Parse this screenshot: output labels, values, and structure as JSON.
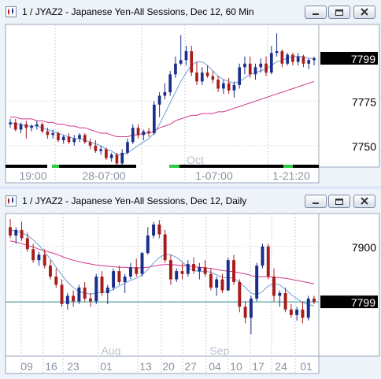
{
  "windows": [
    {
      "id": "win1",
      "title": "1 / JYAZ2 - Japanese Yen-All Sessions, Dec 12, 60 Min",
      "buttons": [
        "minimize-icon",
        "restore-icon",
        "close-icon"
      ],
      "chart_data": {
        "type": "candlestick",
        "price_tag": "7799",
        "y_ticks": [
          "7775",
          "7750"
        ],
        "x_labels": [
          "19:00",
          "28-07:00",
          "1-07:00",
          "1-21:20"
        ],
        "section_label": "Oct",
        "ylim": [
          7738,
          7818
        ],
        "colors": {
          "up": "#1a2e8c",
          "down": "#a81c1c",
          "slow_ma": "#d2378c",
          "fast_ma": "#6fa0d8",
          "tag_bg": "#000000",
          "tag_fg": "#ffffff"
        },
        "candles": [
          [
            7762,
            7765,
            7760,
            7763
          ],
          [
            7763,
            7765,
            7758,
            7759
          ],
          [
            7759,
            7763,
            7757,
            7762
          ],
          [
            7762,
            7764,
            7754,
            7760
          ],
          [
            7760,
            7762,
            7758,
            7761
          ],
          [
            7761,
            7764,
            7759,
            7762
          ],
          [
            7762,
            7763,
            7757,
            7758
          ],
          [
            7758,
            7760,
            7754,
            7756
          ],
          [
            7756,
            7759,
            7754,
            7757
          ],
          [
            7757,
            7758,
            7752,
            7753
          ],
          [
            7753,
            7756,
            7751,
            7755
          ],
          [
            7755,
            7757,
            7751,
            7752
          ],
          [
            7752,
            7756,
            7750,
            7754
          ],
          [
            7754,
            7757,
            7752,
            7756
          ],
          [
            7756,
            7757,
            7751,
            7752
          ],
          [
            7752,
            7754,
            7748,
            7750
          ],
          [
            7750,
            7753,
            7746,
            7747
          ],
          [
            7747,
            7750,
            7745,
            7748
          ],
          [
            7748,
            7749,
            7742,
            7743
          ],
          [
            7743,
            7746,
            7741,
            7745
          ],
          [
            7745,
            7746,
            7738,
            7740
          ],
          [
            7740,
            7748,
            7739,
            7746
          ],
          [
            7746,
            7754,
            7745,
            7752
          ],
          [
            7752,
            7762,
            7751,
            7760
          ],
          [
            7760,
            7762,
            7754,
            7756
          ],
          [
            7756,
            7759,
            7753,
            7758
          ],
          [
            7758,
            7760,
            7755,
            7757
          ],
          [
            7757,
            7775,
            7756,
            7773
          ],
          [
            7773,
            7780,
            7766,
            7778
          ],
          [
            7778,
            7785,
            7776,
            7780
          ],
          [
            7780,
            7792,
            7778,
            7790
          ],
          [
            7790,
            7800,
            7788,
            7796
          ],
          [
            7796,
            7812,
            7795,
            7798
          ],
          [
            7798,
            7806,
            7795,
            7803
          ],
          [
            7803,
            7806,
            7789,
            7791
          ],
          [
            7791,
            7797,
            7784,
            7786
          ],
          [
            7786,
            7794,
            7784,
            7791
          ],
          [
            7791,
            7795,
            7788,
            7789
          ],
          [
            7789,
            7792,
            7785,
            7787
          ],
          [
            7787,
            7789,
            7780,
            7782
          ],
          [
            7782,
            7787,
            7779,
            7785
          ],
          [
            7785,
            7788,
            7779,
            7781
          ],
          [
            7781,
            7786,
            7777,
            7784
          ],
          [
            7784,
            7796,
            7782,
            7794
          ],
          [
            7794,
            7800,
            7790,
            7796
          ],
          [
            7796,
            7800,
            7788,
            7790
          ],
          [
            7790,
            7796,
            7787,
            7794
          ],
          [
            7794,
            7799,
            7791,
            7796
          ],
          [
            7796,
            7800,
            7789,
            7791
          ],
          [
            7791,
            7806,
            7790,
            7802
          ],
          [
            7802,
            7813,
            7800,
            7803
          ],
          [
            7803,
            7804,
            7794,
            7796
          ],
          [
            7796,
            7802,
            7795,
            7801
          ],
          [
            7801,
            7802,
            7795,
            7797
          ],
          [
            7797,
            7802,
            7795,
            7800
          ],
          [
            7800,
            7801,
            7794,
            7796
          ],
          [
            7796,
            7799,
            7793,
            7798
          ],
          [
            7798,
            7800,
            7795,
            7799
          ]
        ],
        "fast_ma": [
          7763,
          7762,
          7762,
          7761,
          7761,
          7761,
          7760,
          7759,
          7758,
          7757,
          7756,
          7755,
          7754,
          7754,
          7753,
          7752,
          7751,
          7750,
          7748,
          7747,
          7745,
          7745,
          7746,
          7748,
          7750,
          7752,
          7754,
          7757,
          7762,
          7768,
          7774,
          7780,
          7786,
          7791,
          7795,
          7797,
          7797,
          7795,
          7792,
          7789,
          7787,
          7786,
          7785,
          7786,
          7788,
          7790,
          7791,
          7792,
          7793,
          7795,
          7797,
          7798,
          7799,
          7800,
          7800,
          7800,
          7799,
          7799
        ],
        "slow_ma": [
          7766,
          7766,
          7765,
          7765,
          7765,
          7764,
          7764,
          7763,
          7763,
          7762,
          7762,
          7761,
          7761,
          7760,
          7760,
          7759,
          7758,
          7757,
          7757,
          7756,
          7755,
          7755,
          7755,
          7756,
          7756,
          7757,
          7757,
          7758,
          7760,
          7761,
          7762,
          7764,
          7765,
          7766,
          7767,
          7767,
          7768,
          7768,
          7768,
          7769,
          7769,
          7770,
          7771,
          7772,
          7773,
          7774,
          7775,
          7776,
          7777,
          7778,
          7779,
          7780,
          7781,
          7782,
          7783,
          7784,
          7785,
          7786
        ]
      }
    },
    {
      "id": "win2",
      "title": "1 / JYAZ2 - Japanese Yen-All Sessions, Dec 12, Daily",
      "buttons": [
        "minimize-icon",
        "restore-icon",
        "close-icon"
      ],
      "chart_data": {
        "type": "candlestick",
        "price_tag": "7799",
        "y_ticks": [
          "7900"
        ],
        "x_labels": [
          "09",
          "16",
          "23",
          "01",
          "13",
          "20",
          "27",
          "04",
          "10",
          "17",
          "24",
          "01"
        ],
        "month_labels": [
          "Aug",
          "Sep"
        ],
        "ylim": [
          7700,
          7960
        ],
        "colors": {
          "up": "#1a2e8c",
          "down": "#a81c1c",
          "slow_ma": "#d2378c",
          "fast_ma": "#6fa0d8",
          "hline": "#2a8a8a",
          "tag_bg": "#000000",
          "tag_fg": "#ffffff"
        },
        "candles": [
          [
            7935,
            7950,
            7915,
            7920
          ],
          [
            7920,
            7935,
            7905,
            7930
          ],
          [
            7930,
            7945,
            7910,
            7915
          ],
          [
            7915,
            7925,
            7890,
            7895
          ],
          [
            7895,
            7905,
            7870,
            7875
          ],
          [
            7875,
            7890,
            7865,
            7885
          ],
          [
            7885,
            7895,
            7860,
            7865
          ],
          [
            7865,
            7875,
            7840,
            7845
          ],
          [
            7845,
            7860,
            7825,
            7830
          ],
          [
            7830,
            7840,
            7790,
            7795
          ],
          [
            7795,
            7815,
            7785,
            7810
          ],
          [
            7810,
            7820,
            7790,
            7800
          ],
          [
            7800,
            7830,
            7795,
            7825
          ],
          [
            7825,
            7835,
            7800,
            7805
          ],
          [
            7805,
            7815,
            7790,
            7800
          ],
          [
            7800,
            7850,
            7795,
            7845
          ],
          [
            7845,
            7855,
            7810,
            7815
          ],
          [
            7815,
            7830,
            7795,
            7825
          ],
          [
            7825,
            7860,
            7820,
            7855
          ],
          [
            7855,
            7865,
            7830,
            7835
          ],
          [
            7835,
            7850,
            7815,
            7845
          ],
          [
            7845,
            7870,
            7840,
            7862
          ],
          [
            7862,
            7878,
            7845,
            7850
          ],
          [
            7850,
            7890,
            7845,
            7888
          ],
          [
            7888,
            7935,
            7885,
            7920
          ],
          [
            7920,
            7945,
            7915,
            7940
          ],
          [
            7940,
            7948,
            7915,
            7922
          ],
          [
            7922,
            7930,
            7870,
            7875
          ],
          [
            7875,
            7885,
            7830,
            7840
          ],
          [
            7840,
            7860,
            7835,
            7855
          ],
          [
            7855,
            7870,
            7840,
            7850
          ],
          [
            7850,
            7875,
            7845,
            7868
          ],
          [
            7868,
            7880,
            7850,
            7855
          ],
          [
            7855,
            7870,
            7840,
            7862
          ],
          [
            7862,
            7875,
            7845,
            7850
          ],
          [
            7850,
            7860,
            7820,
            7825
          ],
          [
            7825,
            7845,
            7810,
            7840
          ],
          [
            7840,
            7850,
            7815,
            7820
          ],
          [
            7820,
            7880,
            7818,
            7875
          ],
          [
            7875,
            7885,
            7830,
            7835
          ],
          [
            7835,
            7840,
            7780,
            7790
          ],
          [
            7790,
            7800,
            7760,
            7770
          ],
          [
            7770,
            7810,
            7740,
            7805
          ],
          [
            7805,
            7870,
            7800,
            7865
          ],
          [
            7865,
            7905,
            7860,
            7900
          ],
          [
            7900,
            7905,
            7840,
            7845
          ],
          [
            7845,
            7860,
            7800,
            7810
          ],
          [
            7810,
            7820,
            7790,
            7815
          ],
          [
            7815,
            7825,
            7780,
            7785
          ],
          [
            7785,
            7795,
            7770,
            7775
          ],
          [
            7775,
            7790,
            7765,
            7785
          ],
          [
            7785,
            7800,
            7760,
            7770
          ],
          [
            7770,
            7810,
            7765,
            7805
          ],
          [
            7805,
            7810,
            7795,
            7799
          ]
        ],
        "fast_ma": [
          7930,
          7928,
          7925,
          7920,
          7912,
          7902,
          7890,
          7877,
          7862,
          7848,
          7835,
          7825,
          7818,
          7815,
          7813,
          7815,
          7817,
          7818,
          7822,
          7828,
          7833,
          7838,
          7842,
          7848,
          7858,
          7870,
          7880,
          7885,
          7885,
          7880,
          7872,
          7862,
          7856,
          7854,
          7855,
          7853,
          7848,
          7843,
          7843,
          7842,
          7835,
          7825,
          7815,
          7812,
          7818,
          7828,
          7832,
          7830,
          7822,
          7812,
          7805,
          7798,
          7794,
          7792
        ],
        "slow_ma": [
          7910,
          7908,
          7905,
          7902,
          7899,
          7895,
          7892,
          7889,
          7886,
          7882,
          7878,
          7875,
          7872,
          7870,
          7868,
          7866,
          7865,
          7864,
          7863,
          7862,
          7862,
          7861,
          7861,
          7861,
          7862,
          7864,
          7866,
          7867,
          7867,
          7866,
          7865,
          7864,
          7863,
          7862,
          7861,
          7860,
          7858,
          7856,
          7855,
          7854,
          7852,
          7850,
          7847,
          7845,
          7845,
          7845,
          7844,
          7843,
          7842,
          7840,
          7838,
          7836,
          7834,
          7832
        ]
      }
    }
  ]
}
